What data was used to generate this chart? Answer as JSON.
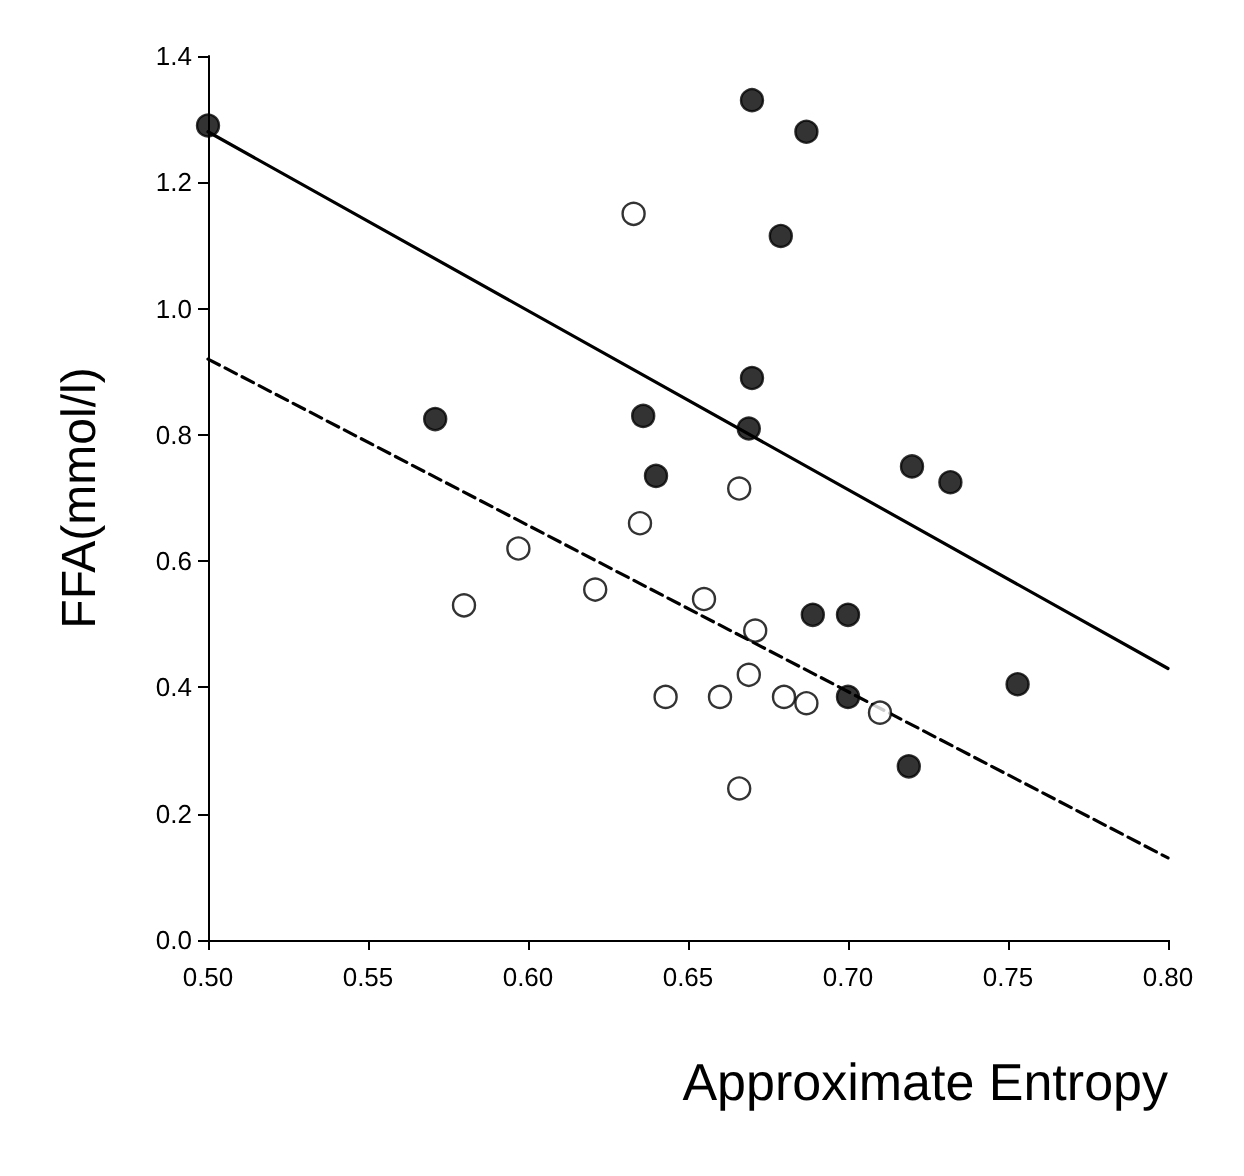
{
  "chart_data": {
    "type": "scatter",
    "xlabel": "Approximate Entropy",
    "ylabel": "FFA(mmol/l)",
    "xlim": [
      0.5,
      0.8
    ],
    "xticks": [
      {
        "value": 0.5,
        "label": "0.50"
      },
      0.55,
      {
        "value": 0.6,
        "label": "0.60"
      },
      0.65,
      {
        "value": 0.7,
        "label": "0.70"
      },
      0.75,
      {
        "value": 0.8,
        "label": "0.80"
      }
    ],
    "ylim": [
      0,
      1.4
    ],
    "yticks": [
      {
        "value": 0,
        "label": "0.0"
      },
      0.2,
      0.4,
      0.6,
      0.8,
      {
        "value": 1,
        "label": "1.0"
      },
      1.2,
      1.4
    ],
    "grid": false,
    "marker": "circle",
    "series": [
      {
        "color": "#000000",
        "x": [
          0.5,
          0.571,
          0.636,
          0.64,
          0.67,
          0.687,
          0.679,
          0.67,
          0.669,
          0.72,
          0.732,
          0.689,
          0.7,
          0.7,
          0.719,
          0.753
        ],
        "values": [
          1.29,
          0.825,
          0.83,
          0.735,
          1.33,
          1.28,
          1.115,
          0.89,
          0.81,
          0.75,
          0.725,
          0.515,
          0.515,
          0.385,
          0.275,
          0.405
        ]
      },
      {
        "color": "#ffffff",
        "x": [
          0.633,
          0.666,
          0.635,
          0.597,
          0.58,
          0.621,
          0.655,
          0.671,
          0.669,
          0.643,
          0.66,
          0.68,
          0.687,
          0.71,
          0.666
        ],
        "values": [
          1.15,
          0.715,
          0.66,
          0.62,
          0.53,
          0.555,
          0.54,
          0.49,
          0.42,
          0.385,
          0.385,
          0.385,
          0.375,
          0.36,
          0.24
        ]
      },
      {
        "type": "line",
        "color": "#000000",
        "line_style": "solid",
        "marker": "none",
        "x": [
          0.5,
          0.8
        ],
        "values": [
          1.28,
          0.43
        ]
      },
      {
        "type": "line",
        "color": "#000000",
        "line_style": "dashed",
        "marker": "none",
        "x": [
          0.5,
          0.8
        ],
        "values": [
          0.92,
          0.13
        ]
      }
    ]
  }
}
